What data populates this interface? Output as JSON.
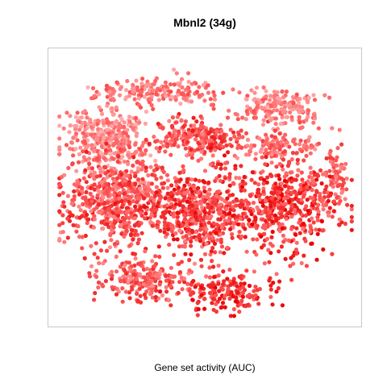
{
  "chart_data": {
    "type": "scatter",
    "title": "Mbnl2 (34g)",
    "xlabel": "Gene set activity (AUC)",
    "ylabel": "",
    "grid": false,
    "legend": "none",
    "axes_ticks": false,
    "color_scale": {
      "low": "#ffb3b3",
      "mid": "#ff5a5a",
      "high": "#e60000"
    },
    "regions": [
      {
        "name": "top-center cluster",
        "cx": 0.35,
        "cy": 0.87,
        "rx": 0.19,
        "ry": 0.05,
        "n": 170,
        "activity": [
          0.05,
          0.6
        ]
      },
      {
        "name": "top-left lobe",
        "cx": 0.17,
        "cy": 0.69,
        "rx": 0.12,
        "ry": 0.1,
        "n": 360,
        "activity": [
          0.0,
          0.55
        ]
      },
      {
        "name": "center-top",
        "cx": 0.47,
        "cy": 0.69,
        "rx": 0.14,
        "ry": 0.07,
        "n": 230,
        "activity": [
          0.25,
          0.85
        ]
      },
      {
        "name": "top-right arm",
        "cx": 0.74,
        "cy": 0.81,
        "rx": 0.14,
        "ry": 0.06,
        "n": 190,
        "activity": [
          0.05,
          0.55
        ]
      },
      {
        "name": "right mid",
        "cx": 0.76,
        "cy": 0.66,
        "rx": 0.12,
        "ry": 0.05,
        "n": 120,
        "activity": [
          0.15,
          0.65
        ]
      },
      {
        "name": "left body",
        "cx": 0.2,
        "cy": 0.45,
        "rx": 0.17,
        "ry": 0.15,
        "n": 620,
        "activity": [
          0.2,
          0.85
        ]
      },
      {
        "name": "center body",
        "cx": 0.48,
        "cy": 0.4,
        "rx": 0.16,
        "ry": 0.15,
        "n": 520,
        "activity": [
          0.3,
          0.95
        ]
      },
      {
        "name": "right body",
        "cx": 0.77,
        "cy": 0.43,
        "rx": 0.16,
        "ry": 0.15,
        "n": 520,
        "activity": [
          0.35,
          1.0
        ]
      },
      {
        "name": "bottom-left tail",
        "cx": 0.3,
        "cy": 0.15,
        "rx": 0.14,
        "ry": 0.08,
        "n": 220,
        "activity": [
          0.2,
          0.8
        ]
      },
      {
        "name": "bottom-center",
        "cx": 0.57,
        "cy": 0.1,
        "rx": 0.13,
        "ry": 0.06,
        "n": 170,
        "activity": [
          0.45,
          1.0
        ]
      },
      {
        "name": "far-right arm",
        "cx": 0.94,
        "cy": 0.54,
        "rx": 0.03,
        "ry": 0.1,
        "n": 60,
        "activity": [
          0.2,
          0.7
        ]
      }
    ]
  }
}
